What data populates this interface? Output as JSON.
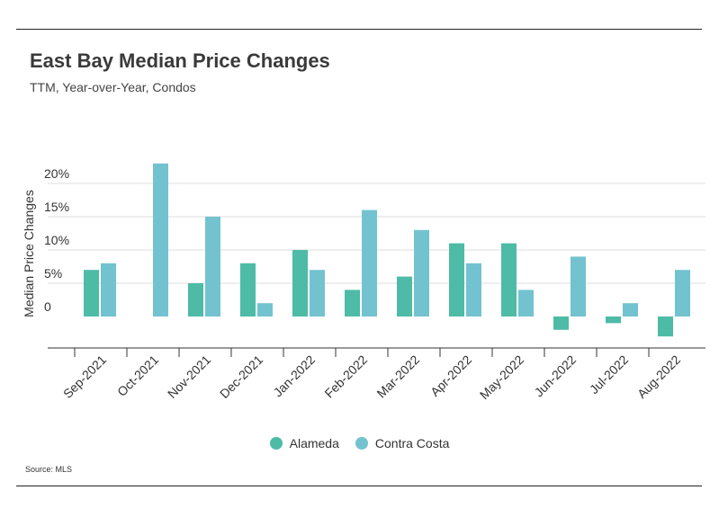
{
  "header": {
    "title": "East Bay Median Price Changes",
    "subtitle": "TTM, Year-over-Year, Condos"
  },
  "footer": {
    "source": "Source:  MLS"
  },
  "chart_data": {
    "type": "bar",
    "title": "East Bay Median Price Changes",
    "subtitle": "TTM, Year-over-Year, Condos",
    "xlabel": "",
    "ylabel": "Median Price Changes",
    "categories": [
      "Sep-2021",
      "Oct-2021",
      "Nov-2021",
      "Dec-2021",
      "Jan-2022",
      "Feb-2022",
      "Mar-2022",
      "Apr-2022",
      "May-2022",
      "Jun-2022",
      "Jul-2022",
      "Aug-2022"
    ],
    "series": [
      {
        "name": "Alameda",
        "color": "#4dbba6",
        "values": [
          7,
          0,
          5,
          8,
          10,
          4,
          6,
          11,
          11,
          -2,
          -1,
          -3
        ]
      },
      {
        "name": "Contra Costa",
        "color": "#72c3cf",
        "values": [
          8,
          23,
          15,
          2,
          7,
          16,
          13,
          8,
          4,
          9,
          2,
          7
        ]
      }
    ],
    "ylim": [
      -5,
      25
    ],
    "yticks": [
      0,
      5,
      10,
      15,
      20
    ],
    "ytick_labels": [
      "0",
      "5%",
      "10%",
      "15%",
      "20%"
    ],
    "grid": true,
    "legend": "bottom-center"
  }
}
